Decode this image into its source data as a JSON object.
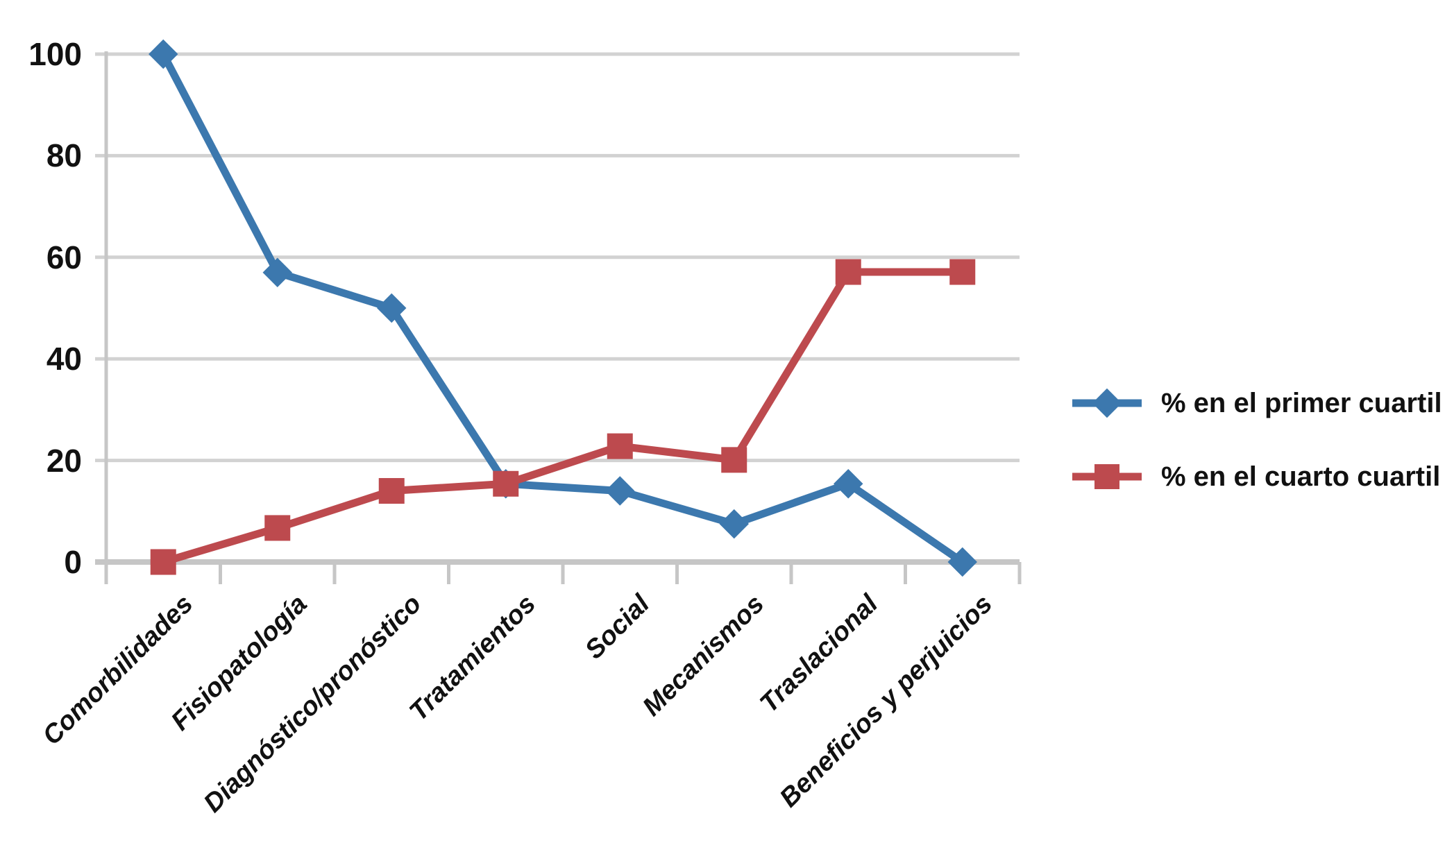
{
  "chart_data": {
    "type": "line",
    "title": "",
    "xlabel": "",
    "ylabel": "",
    "categories": [
      "Comorbilidades",
      "Fisiopatología",
      "Diagnóstico/pronóstico",
      "Tratamientos",
      "Social",
      "Mecanismos",
      "Traslacional",
      "Beneficios y perjuicios"
    ],
    "series": [
      {
        "name": "% en el primer cuartil",
        "marker": "diamond",
        "color": "#3C78AE",
        "values": [
          100,
          57,
          50,
          15.4,
          14,
          7.5,
          15.4,
          0
        ]
      },
      {
        "name": "% en el cuarto cuartil",
        "marker": "square",
        "color": "#BD4A4E",
        "values": [
          0,
          6.7,
          14,
          15.4,
          22.8,
          20.1,
          57.1,
          57.1
        ]
      }
    ],
    "ylim": [
      0,
      100
    ],
    "yticks": [
      0,
      20,
      40,
      60,
      80,
      100
    ],
    "grid": true,
    "legend_position": "right"
  },
  "colors": {
    "background": "#FFFFFF",
    "gridline": "#D2D2D2",
    "axis": "#C6C6C6",
    "text": "#111111"
  }
}
